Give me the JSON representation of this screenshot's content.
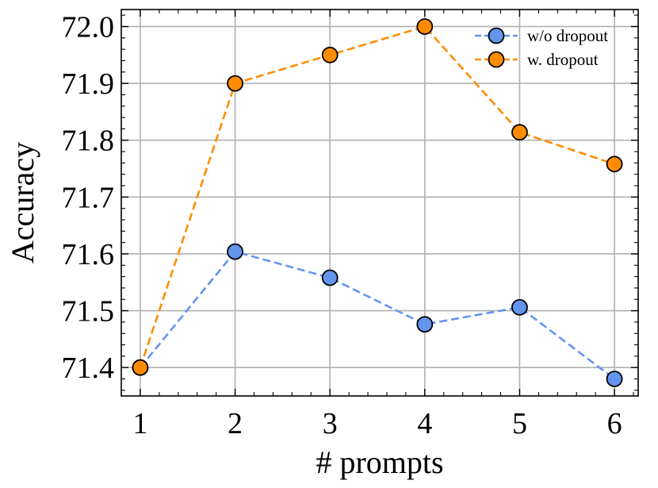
{
  "chart_data": {
    "type": "line",
    "title": "",
    "xlabel": "# prompts",
    "ylabel": "Accuracy",
    "x": [
      1,
      2,
      3,
      4,
      5,
      6
    ],
    "xticks": [
      "1",
      "2",
      "3",
      "4",
      "5",
      "6"
    ],
    "yticks": [
      "71.4",
      "71.5",
      "71.6",
      "71.7",
      "71.8",
      "71.9",
      "72.0"
    ],
    "xlim": [
      0.8,
      6.25
    ],
    "ylim": [
      71.35,
      72.03
    ],
    "grid": true,
    "legend_position": "top-right",
    "series": [
      {
        "name": "w/o dropout",
        "values": [
          71.4,
          71.604,
          71.558,
          71.476,
          71.506,
          71.38
        ],
        "color": "#6495ED",
        "line_style": "dashed",
        "marker": "circle"
      },
      {
        "name": "w. dropout",
        "values": [
          71.4,
          71.9,
          71.95,
          72.0,
          71.814,
          71.758
        ],
        "color": "#FF8C00",
        "line_style": "dashed",
        "marker": "circle"
      }
    ]
  }
}
